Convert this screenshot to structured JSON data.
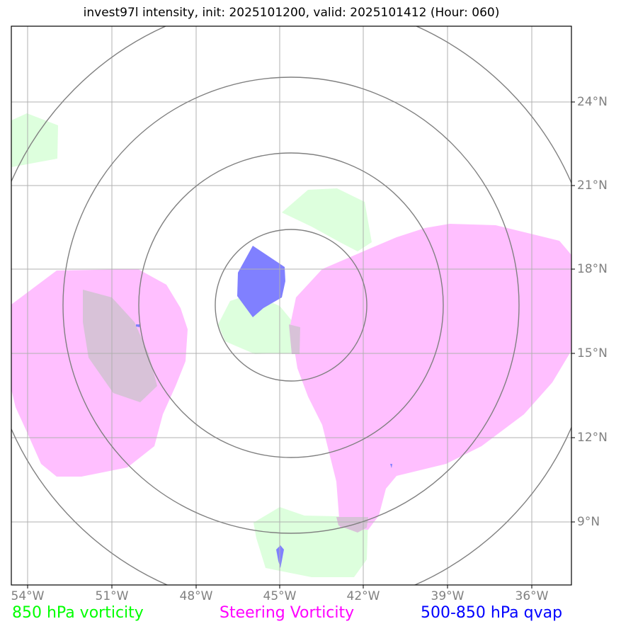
{
  "title": "invest97l intensity, init: 2025101200, valid: 2025101412 (Hour: 060)",
  "lon_labels": [
    "54°W",
    "51°W",
    "48°W",
    "45°W",
    "42°W",
    "39°W",
    "36°W"
  ],
  "lat_labels": [
    "24°N",
    "21°N",
    "18°N",
    "15°N",
    "12°N",
    "9°N"
  ],
  "legend": {
    "vort850": {
      "label": "850 hPa vorticity",
      "color": "#00ff00"
    },
    "steering": {
      "label": "Steering Vorticity",
      "color": "#ff00ff"
    },
    "qvap": {
      "label": "500-850 hPa qvap",
      "color": "#0000ff"
    }
  },
  "colors": {
    "vort850_fill": "#ddffdd",
    "steering_fill": "#ffbfff",
    "qvap_fill": "#8080ff",
    "grid": "#b0b0b0",
    "range_rings": "#808080"
  }
}
